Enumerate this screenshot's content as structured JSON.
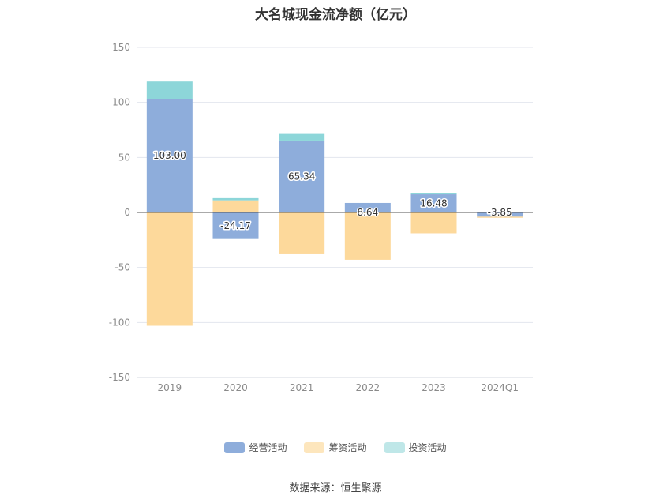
{
  "chart_data": {
    "type": "bar",
    "stacked": true,
    "title": "大名城现金流净额（亿元）",
    "categories": [
      "2019",
      "2020",
      "2021",
      "2022",
      "2023",
      "2024Q1"
    ],
    "ylim": [
      -150,
      150
    ],
    "yticks": [
      150,
      100,
      50,
      0,
      -50,
      -100,
      -150
    ],
    "grid": true,
    "legend_position": "bottom",
    "series": [
      {
        "name": "经营活动",
        "color": "#8eaddb",
        "values": [
          103.0,
          -24.17,
          65.34,
          8.64,
          16.48,
          -3.85
        ]
      },
      {
        "name": "筹资活动",
        "color": "#fdd99b",
        "values": [
          -103,
          11,
          -38,
          -43,
          -19,
          -1
        ]
      },
      {
        "name": "投资活动",
        "color": "#8dd6d9",
        "values": [
          16,
          2,
          6,
          0,
          1,
          0
        ]
      }
    ],
    "data_labels": [
      "103.00",
      "-24.17",
      "65.34",
      "8.64",
      "16.48",
      "-3.85"
    ],
    "legend_swatch_colors": [
      "#8eaddb",
      "#fde6bd",
      "#bfe7e8"
    ],
    "source": "数据来源：恒生聚源"
  }
}
